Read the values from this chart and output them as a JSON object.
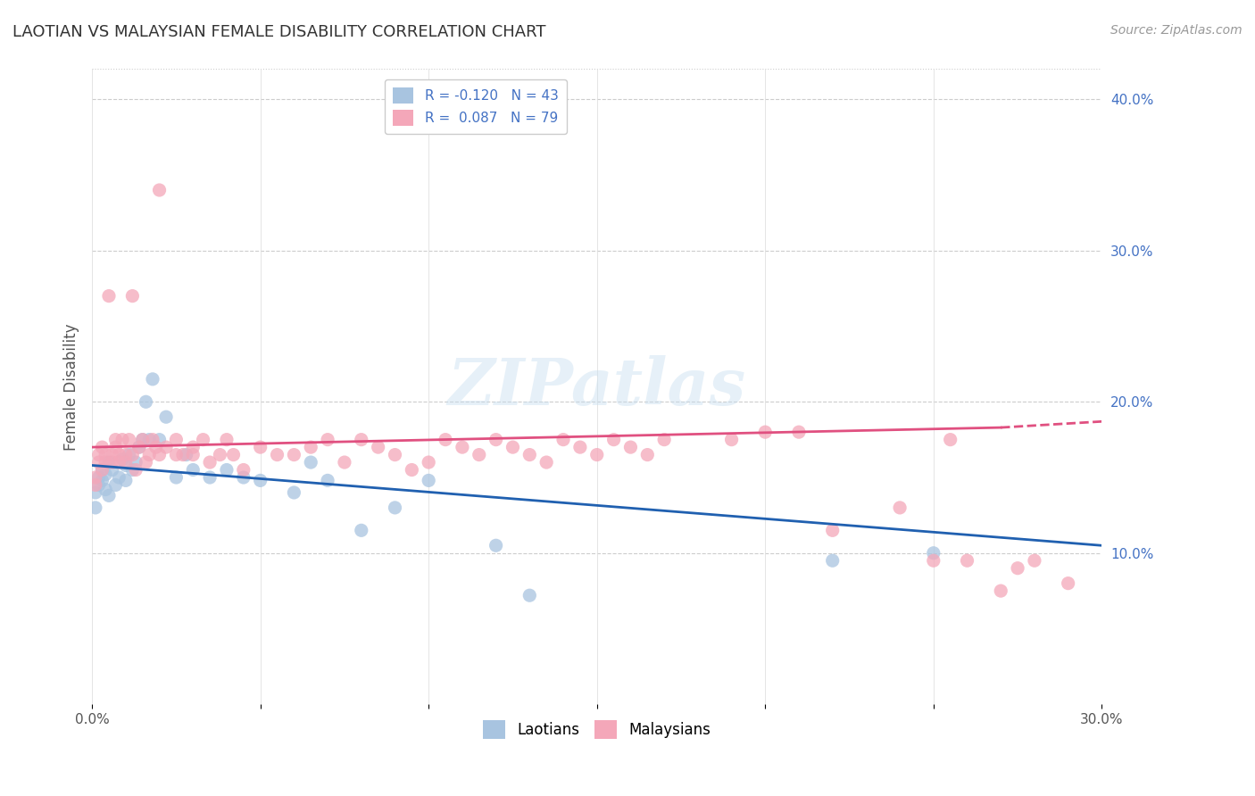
{
  "title": "LAOTIAN VS MALAYSIAN FEMALE DISABILITY CORRELATION CHART",
  "source_text": "Source: ZipAtlas.com",
  "ylabel": "Female Disability",
  "xlim": [
    0.0,
    0.3
  ],
  "ylim": [
    0.0,
    0.42
  ],
  "x_ticks": [
    0.0,
    0.05,
    0.1,
    0.15,
    0.2,
    0.25,
    0.3
  ],
  "x_tick_labels": [
    "0.0%",
    "",
    "",
    "",
    "",
    "",
    "30.0%"
  ],
  "y_ticks_right": [
    0.1,
    0.2,
    0.3,
    0.4
  ],
  "y_tick_labels_right": [
    "10.0%",
    "20.0%",
    "30.0%",
    "40.0%"
  ],
  "laotian_R": -0.12,
  "laotian_N": 43,
  "malaysian_R": 0.087,
  "malaysian_N": 79,
  "laotian_color": "#a8c4e0",
  "malaysian_color": "#f4a7b9",
  "laotian_line_color": "#2060b0",
  "malaysian_line_color": "#e05080",
  "watermark": "ZIPatlas",
  "laotian_x": [
    0.001,
    0.001,
    0.002,
    0.002,
    0.003,
    0.003,
    0.004,
    0.004,
    0.005,
    0.005,
    0.006,
    0.007,
    0.008,
    0.009,
    0.01,
    0.01,
    0.011,
    0.012,
    0.013,
    0.014,
    0.015,
    0.016,
    0.017,
    0.018,
    0.02,
    0.022,
    0.025,
    0.028,
    0.03,
    0.035,
    0.04,
    0.045,
    0.05,
    0.06,
    0.065,
    0.07,
    0.08,
    0.09,
    0.1,
    0.12,
    0.13,
    0.22,
    0.25
  ],
  "laotian_y": [
    0.14,
    0.13,
    0.15,
    0.145,
    0.155,
    0.148,
    0.142,
    0.152,
    0.16,
    0.138,
    0.155,
    0.145,
    0.15,
    0.162,
    0.158,
    0.148,
    0.165,
    0.155,
    0.16,
    0.17,
    0.175,
    0.2,
    0.175,
    0.215,
    0.175,
    0.19,
    0.15,
    0.165,
    0.155,
    0.15,
    0.155,
    0.15,
    0.148,
    0.14,
    0.16,
    0.148,
    0.115,
    0.13,
    0.148,
    0.105,
    0.072,
    0.095,
    0.1
  ],
  "malaysian_x": [
    0.001,
    0.001,
    0.002,
    0.002,
    0.003,
    0.003,
    0.004,
    0.004,
    0.005,
    0.006,
    0.006,
    0.007,
    0.007,
    0.008,
    0.008,
    0.009,
    0.01,
    0.01,
    0.011,
    0.012,
    0.012,
    0.013,
    0.014,
    0.015,
    0.016,
    0.017,
    0.018,
    0.019,
    0.02,
    0.02,
    0.022,
    0.025,
    0.025,
    0.027,
    0.03,
    0.03,
    0.033,
    0.035,
    0.038,
    0.04,
    0.042,
    0.045,
    0.05,
    0.055,
    0.06,
    0.065,
    0.07,
    0.075,
    0.08,
    0.085,
    0.09,
    0.095,
    0.1,
    0.105,
    0.11,
    0.115,
    0.12,
    0.125,
    0.13,
    0.135,
    0.14,
    0.145,
    0.15,
    0.155,
    0.16,
    0.165,
    0.17,
    0.19,
    0.2,
    0.21,
    0.22,
    0.24,
    0.25,
    0.255,
    0.26,
    0.27,
    0.275,
    0.28,
    0.29
  ],
  "malaysian_y": [
    0.15,
    0.145,
    0.165,
    0.16,
    0.17,
    0.155,
    0.165,
    0.16,
    0.27,
    0.165,
    0.16,
    0.175,
    0.17,
    0.165,
    0.16,
    0.175,
    0.165,
    0.16,
    0.175,
    0.165,
    0.27,
    0.155,
    0.17,
    0.175,
    0.16,
    0.165,
    0.175,
    0.17,
    0.34,
    0.165,
    0.17,
    0.165,
    0.175,
    0.165,
    0.17,
    0.165,
    0.175,
    0.16,
    0.165,
    0.175,
    0.165,
    0.155,
    0.17,
    0.165,
    0.165,
    0.17,
    0.175,
    0.16,
    0.175,
    0.17,
    0.165,
    0.155,
    0.16,
    0.175,
    0.17,
    0.165,
    0.175,
    0.17,
    0.165,
    0.16,
    0.175,
    0.17,
    0.165,
    0.175,
    0.17,
    0.165,
    0.175,
    0.175,
    0.18,
    0.18,
    0.115,
    0.13,
    0.095,
    0.175,
    0.095,
    0.075,
    0.09,
    0.095,
    0.08
  ]
}
